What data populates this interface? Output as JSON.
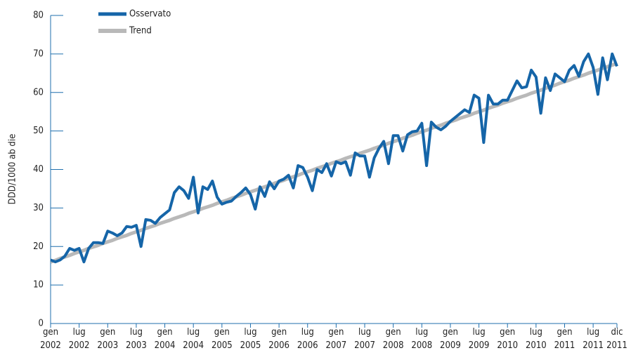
{
  "chart_data": {
    "type": "line",
    "y_label": "DDD/1000 ab die",
    "categories": [
      "gen\n2002",
      null,
      null,
      null,
      null,
      null,
      "lug\n2002",
      null,
      null,
      null,
      null,
      null,
      "gen\n2003",
      null,
      null,
      null,
      null,
      null,
      "lug\n2003",
      null,
      null,
      null,
      null,
      null,
      "gen\n2004",
      null,
      null,
      null,
      null,
      null,
      "lug\n2004",
      null,
      null,
      null,
      null,
      null,
      "gen\n2005",
      null,
      null,
      null,
      null,
      null,
      "lug\n2005",
      null,
      null,
      null,
      null,
      null,
      "gen\n2006",
      null,
      null,
      null,
      null,
      null,
      "lug\n2006",
      null,
      null,
      null,
      null,
      null,
      "gen\n2007",
      null,
      null,
      null,
      null,
      null,
      "lug\n2007",
      null,
      null,
      null,
      null,
      null,
      "gen\n2008",
      null,
      null,
      null,
      null,
      null,
      "lug\n2008",
      null,
      null,
      null,
      null,
      null,
      "gen\n2009",
      null,
      null,
      null,
      null,
      null,
      "lug\n2009",
      null,
      null,
      null,
      null,
      null,
      "gen\n2010",
      null,
      null,
      null,
      null,
      null,
      "lug\n2010",
      null,
      null,
      null,
      null,
      null,
      "gen\n2011",
      null,
      null,
      null,
      null,
      null,
      "lug\n2011",
      null,
      null,
      null,
      null,
      "dic\n2011"
    ],
    "series": [
      {
        "name": "Trend",
        "color": "#b9b9b9",
        "width": 5,
        "values": [
          16.0,
          16.4,
          16.9,
          17.3,
          17.7,
          18.2,
          18.6,
          19.0,
          19.5,
          19.9,
          20.3,
          20.8,
          21.2,
          21.6,
          22.1,
          22.5,
          22.9,
          23.4,
          23.8,
          24.2,
          24.7,
          25.1,
          25.5,
          26.0,
          26.4,
          26.8,
          27.3,
          27.7,
          28.1,
          28.6,
          29.0,
          29.4,
          29.9,
          30.3,
          30.7,
          31.2,
          31.6,
          32.0,
          32.5,
          32.9,
          33.3,
          33.8,
          34.2,
          34.6,
          35.1,
          35.5,
          35.9,
          36.4,
          36.8,
          37.2,
          37.7,
          38.1,
          38.5,
          39.0,
          39.4,
          39.8,
          40.3,
          40.7,
          41.1,
          41.6,
          42.0,
          42.4,
          42.9,
          43.3,
          43.7,
          44.2,
          44.6,
          45.0,
          45.5,
          45.9,
          46.3,
          46.8,
          47.2,
          47.6,
          48.1,
          48.5,
          48.9,
          49.4,
          49.8,
          50.2,
          50.7,
          51.1,
          51.5,
          52.0,
          52.4,
          52.8,
          53.3,
          53.7,
          54.1,
          54.6,
          55.0,
          55.4,
          55.9,
          56.3,
          56.7,
          57.2,
          57.6,
          58.0,
          58.5,
          58.9,
          59.3,
          59.8,
          60.2,
          60.6,
          61.1,
          61.5,
          61.9,
          62.4,
          62.8,
          63.2,
          63.7,
          64.1,
          64.5,
          65.0,
          65.4,
          65.8,
          66.3,
          66.7,
          67.1,
          67.6
        ]
      },
      {
        "name": "Osservato",
        "color": "#1565a8",
        "width": 4,
        "values": [
          16.5,
          16,
          16.5,
          17.5,
          19.5,
          19,
          19.5,
          16,
          19.5,
          21,
          21,
          20.8,
          24,
          23.5,
          22.8,
          23.5,
          25.2,
          25,
          25.5,
          20,
          27,
          26.8,
          26,
          27.5,
          28.5,
          29.5,
          34,
          35.5,
          34.5,
          32.5,
          38,
          28.7,
          35.5,
          34.8,
          37,
          32.8,
          31,
          31.5,
          31.8,
          33,
          34,
          35.2,
          33.5,
          29.7,
          35.5,
          33,
          36.8,
          35,
          37,
          37.5,
          38.5,
          35.2,
          41,
          40.5,
          38,
          34.5,
          40,
          39.2,
          41.5,
          38.3,
          42,
          41.5,
          42,
          38.5,
          44.3,
          43.5,
          43.5,
          38,
          43,
          45.5,
          47.3,
          41.5,
          48.8,
          48.8,
          44.8,
          49,
          49.8,
          50,
          52,
          41,
          52.3,
          51,
          50.3,
          51.2,
          52.5,
          53.5,
          54.5,
          55.5,
          54.8,
          59.3,
          58.5,
          47,
          59.3,
          57,
          57,
          58,
          58,
          60.5,
          63,
          61.2,
          61.5,
          65.8,
          64,
          54.6,
          63.8,
          60.5,
          64.8,
          63.8,
          62.8,
          65.8,
          67,
          64.2,
          68,
          70,
          66.5,
          59.5,
          69,
          63.3,
          70,
          66.8
        ]
      }
    ],
    "legend_order": [
      1,
      0
    ],
    "axis_color": "#1f6fae",
    "ylim": [
      0,
      80
    ],
    "yticks": [
      0,
      10,
      20,
      30,
      40,
      50,
      60,
      70,
      80
    ]
  }
}
